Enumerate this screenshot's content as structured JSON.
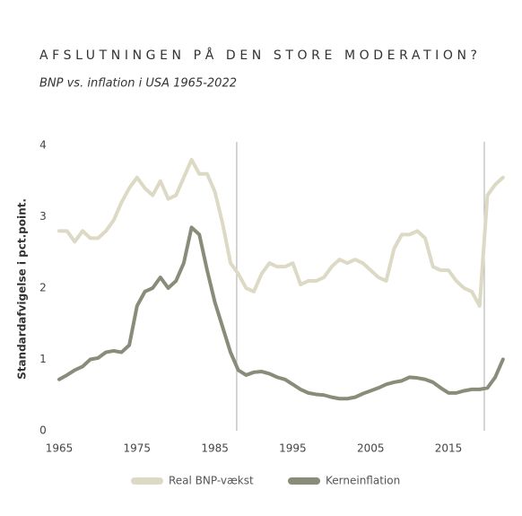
{
  "chart_data": {
    "type": "line",
    "title": "AFSLUTNINGEN PÅ DEN STORE MODERATION?",
    "subtitle": "BNP vs. inflation i USA  1965-2022",
    "y_label": "Standardafvigelse i pct.point.",
    "x": [
      1965,
      1966,
      1967,
      1968,
      1969,
      1970,
      1971,
      1972,
      1973,
      1974,
      1975,
      1976,
      1977,
      1978,
      1979,
      1980,
      1981,
      1982,
      1983,
      1984,
      1985,
      1986,
      1987,
      1988,
      1989,
      1990,
      1991,
      1992,
      1993,
      1994,
      1995,
      1996,
      1997,
      1998,
      1999,
      2000,
      2001,
      2002,
      2003,
      2004,
      2005,
      2006,
      2007,
      2008,
      2009,
      2010,
      2011,
      2012,
      2013,
      2014,
      2015,
      2016,
      2017,
      2018,
      2019,
      2020,
      2021,
      2022
    ],
    "series": [
      {
        "name": "Real BNP-vækst",
        "color": "#dcd9c5",
        "values": [
          2.8,
          2.8,
          2.65,
          2.8,
          2.7,
          2.7,
          2.8,
          2.95,
          3.2,
          3.4,
          3.55,
          3.4,
          3.3,
          3.5,
          3.25,
          3.3,
          3.55,
          3.8,
          3.6,
          3.6,
          3.35,
          2.9,
          2.35,
          2.2,
          2.0,
          1.95,
          2.2,
          2.35,
          2.3,
          2.3,
          2.35,
          2.05,
          2.1,
          2.1,
          2.15,
          2.3,
          2.4,
          2.35,
          2.4,
          2.35,
          2.25,
          2.15,
          2.1,
          2.55,
          2.75,
          2.75,
          2.8,
          2.7,
          2.3,
          2.25,
          2.25,
          2.1,
          2.0,
          1.95,
          1.75,
          3.3,
          3.45,
          3.55
        ]
      },
      {
        "name": "Kerneinflation",
        "color": "#8a8c7a",
        "values": [
          0.72,
          0.78,
          0.85,
          0.9,
          1.0,
          1.02,
          1.1,
          1.12,
          1.1,
          1.2,
          1.75,
          1.95,
          2.0,
          2.15,
          2.0,
          2.1,
          2.35,
          2.85,
          2.75,
          2.25,
          1.8,
          1.45,
          1.1,
          0.85,
          0.78,
          0.82,
          0.83,
          0.8,
          0.75,
          0.72,
          0.65,
          0.58,
          0.53,
          0.51,
          0.5,
          0.47,
          0.45,
          0.45,
          0.47,
          0.52,
          0.56,
          0.6,
          0.65,
          0.68,
          0.7,
          0.75,
          0.74,
          0.72,
          0.68,
          0.6,
          0.53,
          0.53,
          0.56,
          0.58,
          0.58,
          0.6,
          0.75,
          1.0
        ]
      }
    ],
    "xlim": [
      1965,
      2022
    ],
    "ylim": [
      0,
      4
    ],
    "xticks": [
      1965,
      1975,
      1985,
      1995,
      2005,
      2015
    ],
    "yticks": [
      0,
      1,
      2,
      3,
      4
    ],
    "vlines": [
      1987.8,
      2019.6
    ],
    "grid": false
  }
}
